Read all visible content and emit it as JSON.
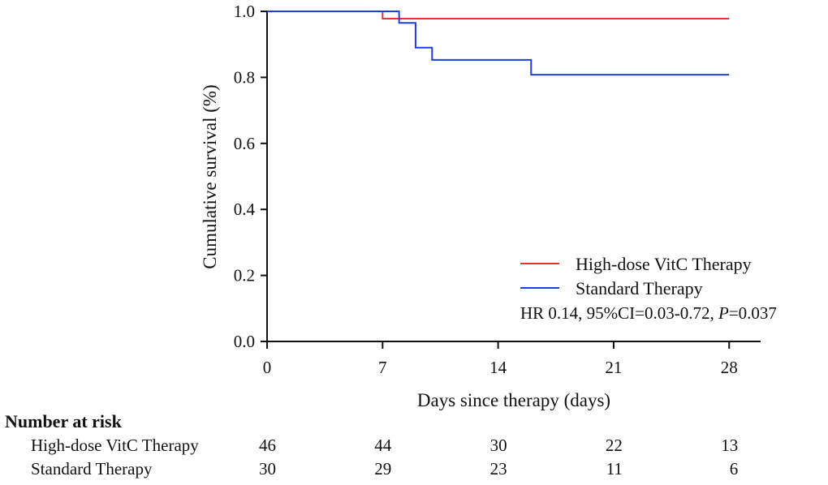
{
  "chart_data": {
    "type": "line",
    "subtype": "kaplan-meier",
    "ylabel": "Cumulative survival (%)",
    "xlabel": "Days since therapy (days)",
    "xlim": [
      0,
      30
    ],
    "ylim": [
      0,
      1.0
    ],
    "x_ticks": [
      0,
      7,
      14,
      21,
      28
    ],
    "x_tick_labels": [
      "0",
      "7",
      "14",
      "21",
      "28"
    ],
    "y_ticks": [
      0,
      0.2,
      0.4,
      0.6,
      0.8,
      1.0
    ],
    "y_tick_labels": [
      "0.0",
      "0.2",
      "0.4",
      "0.6",
      "0.8",
      "1.0"
    ],
    "grid": false,
    "legend_position": "bottom-right",
    "series": [
      {
        "name": "High-dose VitC Therapy",
        "color": "#e8322d",
        "steps": [
          [
            0,
            1.0
          ],
          [
            7,
            0.978
          ],
          [
            28,
            0.978
          ]
        ]
      },
      {
        "name": "Standard Therapy",
        "color": "#1f3ee0",
        "steps": [
          [
            0,
            1.0
          ],
          [
            8,
            0.965
          ],
          [
            9,
            0.89
          ],
          [
            10,
            0.853
          ],
          [
            16,
            0.808
          ],
          [
            28,
            0.808
          ]
        ]
      }
    ],
    "annotation": {
      "prefix": "HR 0.14, 95%CI=0.03-0.72, ",
      "p_symbol": "P",
      "p_value": "=0.037"
    },
    "risk_table": {
      "title": "Number at risk",
      "rows": [
        {
          "label": "High-dose VitC Therapy",
          "values": [
            "46",
            "44",
            "30",
            "22",
            "13"
          ]
        },
        {
          "label": "Standard Therapy",
          "values": [
            "30",
            "29",
            "23",
            "11",
            "6"
          ]
        }
      ]
    }
  }
}
